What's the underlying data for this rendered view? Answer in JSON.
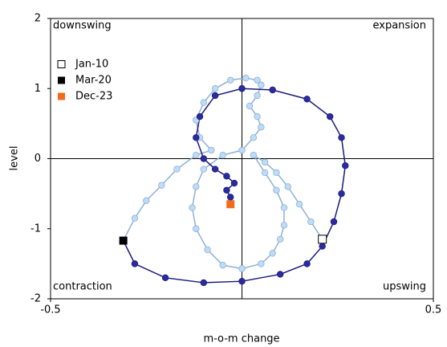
{
  "chart_data": {
    "type": "line",
    "xlabel": "m-o-m change",
    "ylabel": "level",
    "xlim": [
      -0.5,
      0.5
    ],
    "xticks": [
      -0.5,
      0.5
    ],
    "ylim": [
      -2,
      2
    ],
    "yticks": [
      2,
      1,
      0,
      -1,
      -2
    ],
    "annotations": [
      "downswing",
      "expansion",
      "contraction",
      "upswing"
    ],
    "series": [
      {
        "color": "#bfdcf5",
        "line": "#8fb0d8",
        "x": [
          0.21,
          0.18,
          0.15,
          0.12,
          0.09,
          0.06,
          0.03,
          0.06,
          0.09,
          0.11,
          0.11,
          0.1,
          0.08,
          0.05,
          0.0,
          -0.05,
          -0.09,
          -0.12,
          -0.13,
          -0.12,
          -0.1,
          -0.05,
          0.0,
          0.03,
          0.05,
          0.04,
          0.02,
          0.04,
          0.05,
          0.04,
          0.01,
          -0.03,
          -0.07,
          -0.1,
          -0.12,
          -0.11,
          -0.08,
          -0.12,
          -0.17,
          -0.21,
          -0.25,
          -0.28,
          -0.31
        ],
        "values": [
          -1.15,
          -0.9,
          -0.65,
          -0.4,
          -0.2,
          -0.05,
          0.05,
          -0.2,
          -0.45,
          -0.7,
          -0.95,
          -1.15,
          -1.35,
          -1.5,
          -1.57,
          -1.52,
          -1.3,
          -1.0,
          -0.7,
          -0.4,
          -0.15,
          0.05,
          0.12,
          0.3,
          0.45,
          0.6,
          0.75,
          0.9,
          1.05,
          1.12,
          1.15,
          1.12,
          1.0,
          0.8,
          0.55,
          0.3,
          0.12,
          0.05,
          -0.15,
          -0.38,
          -0.6,
          -0.85,
          -1.17
        ]
      },
      {
        "color": "#2b2b9e",
        "line": "#1a1a80",
        "x": [
          -0.31,
          -0.28,
          -0.2,
          -0.1,
          0.0,
          0.1,
          0.17,
          0.21,
          0.24,
          0.26,
          0.27,
          0.26,
          0.23,
          0.17,
          0.08,
          0.0,
          -0.07,
          -0.11,
          -0.12,
          -0.1,
          -0.07,
          -0.04,
          -0.02,
          -0.04,
          -0.03,
          -0.03
        ],
        "values": [
          -1.17,
          -1.5,
          -1.7,
          -1.77,
          -1.75,
          -1.65,
          -1.5,
          -1.25,
          -0.9,
          -0.5,
          -0.1,
          0.3,
          0.6,
          0.85,
          0.98,
          1.0,
          0.9,
          0.6,
          0.3,
          0.0,
          -0.15,
          -0.25,
          -0.35,
          -0.45,
          -0.55,
          -0.65
        ]
      }
    ],
    "highlights": [
      {
        "name": "Jan-10",
        "color": "#ffffff",
        "x": 0.21,
        "y": -1.15
      },
      {
        "name": "Mar-20",
        "color": "#000000",
        "x": -0.31,
        "y": -1.17
      },
      {
        "name": "Dec-23",
        "color": "#f26b1d",
        "x": -0.03,
        "y": -0.65
      }
    ]
  }
}
